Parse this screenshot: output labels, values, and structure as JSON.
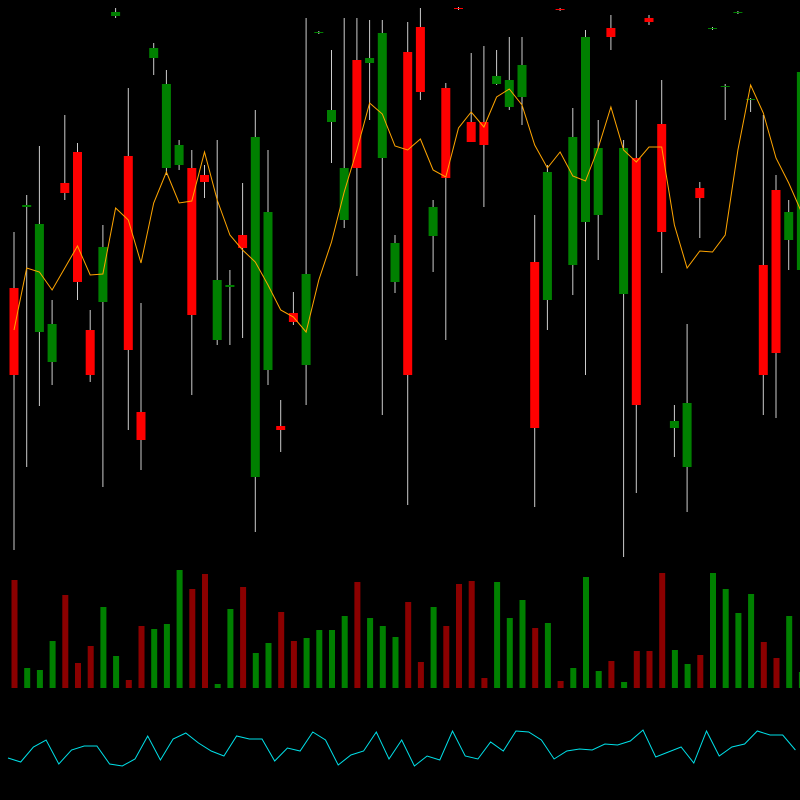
{
  "chart_data": {
    "type": "candlestick",
    "open": [
      225,
      395,
      376,
      276,
      407,
      318,
      225,
      353,
      588,
      250,
      160,
      552,
      516,
      455,
      285,
      418,
      320,
      315,
      352,
      463,
      388,
      170,
      278,
      326,
      568,
      490,
      432,
      432,
      542,
      567,
      357,
      225,
      508,
      393,
      422,
      591,
      458,
      455,
      524,
      520,
      535,
      172,
      428,
      590,
      463,
      563,
      452,
      563,
      452,
      195,
      578,
      368,
      179,
      197,
      402,
      572,
      514,
      588,
      501,
      225,
      247,
      388,
      528
    ],
    "high": [
      368,
      405,
      454,
      300,
      485,
      457,
      290,
      375,
      592,
      512,
      297,
      557,
      530,
      460,
      450,
      435,
      460,
      330,
      417,
      490,
      450,
      200,
      308,
      582,
      569,
      550,
      582,
      582,
      580,
      580,
      365,
      578,
      592,
      400,
      517,
      593,
      547,
      554,
      550,
      563,
      563,
      385,
      435,
      592,
      492,
      570,
      480,
      585,
      460,
      500,
      585,
      520,
      195,
      276,
      418,
      573,
      516,
      589,
      502,
      485,
      425,
      400,
      535
    ],
    "low": [
      50,
      133,
      194,
      215,
      400,
      300,
      218,
      113,
      582,
      170,
      130,
      525,
      425,
      430,
      205,
      402,
      255,
      255,
      262,
      68,
      215,
      148,
      275,
      195,
      566,
      437,
      372,
      324,
      480,
      185,
      307,
      95,
      500,
      328,
      260,
      590,
      458,
      393,
      515,
      490,
      475,
      93,
      270,
      589,
      305,
      225,
      340,
      550,
      43,
      107,
      575,
      327,
      143,
      88,
      362,
      570,
      480,
      586,
      488,
      185,
      182,
      330,
      320
    ],
    "close": [
      312,
      393,
      268,
      238,
      417,
      448,
      270,
      298,
      584,
      444,
      188,
      542,
      432,
      435,
      432,
      425,
      260,
      313,
      365,
      123,
      230,
      174,
      287,
      235,
      567,
      478,
      380,
      540,
      537,
      442,
      318,
      548,
      573,
      364,
      512,
      592,
      478,
      478,
      516,
      493,
      503,
      338,
      300,
      591,
      335,
      378,
      385,
      572,
      306,
      442,
      582,
      476,
      172,
      133,
      412,
      571,
      513,
      587,
      500,
      335,
      410,
      360,
      330
    ],
    "volume": [
      108,
      20,
      18,
      47,
      93,
      25,
      42,
      81,
      32,
      8,
      62,
      59,
      64,
      118,
      99,
      114,
      4,
      79,
      101,
      35,
      45,
      76,
      47,
      50,
      58,
      58,
      72,
      106,
      70,
      62,
      51,
      86,
      26,
      81,
      62,
      104,
      107,
      10,
      106,
      70,
      88,
      60,
      65,
      7,
      20,
      111,
      17,
      27,
      6,
      37,
      37,
      115,
      38,
      24,
      33,
      115,
      99,
      75,
      94,
      46,
      30,
      72,
      16
    ],
    "ma": [
      270,
      332,
      328,
      310,
      332,
      354,
      325,
      326,
      392,
      380,
      337,
      397,
      428,
      397,
      399,
      448,
      400,
      365,
      350,
      338,
      315,
      290,
      283,
      268,
      320,
      358,
      408,
      450,
      497,
      486,
      454,
      450,
      461,
      430,
      423,
      472,
      488,
      473,
      503,
      511,
      495,
      455,
      432,
      448,
      424,
      419,
      452,
      493,
      450,
      438,
      453,
      453,
      375,
      332,
      349,
      348,
      365,
      450,
      515,
      487,
      442,
      417,
      388
    ],
    "indicator": [
      42,
      38,
      53,
      60,
      36,
      50,
      54,
      54,
      36,
      34,
      41,
      64,
      40,
      61,
      67,
      57,
      49,
      44,
      64,
      61,
      61,
      39,
      52,
      49,
      68,
      60,
      35,
      45,
      49,
      68,
      41,
      60,
      34,
      44,
      40,
      69,
      44,
      41,
      58,
      49,
      69,
      68,
      60,
      41,
      49,
      51,
      50,
      56,
      55,
      59,
      70,
      43,
      48,
      53,
      37,
      69,
      44,
      53,
      56,
      69,
      65,
      65,
      50
    ],
    "up_color": "#ff0000",
    "down_color": "#008000",
    "volume_up_color": "#8b0000",
    "volume_down_color": "#008000",
    "wick_color": "#cccccc",
    "ma_color": "#ffa500",
    "indicator_color": "#00e0e8",
    "ylim": [
      0,
      600
    ],
    "volume_lim": [
      0,
      120
    ],
    "indicator_lim": [
      0,
      100
    ]
  }
}
